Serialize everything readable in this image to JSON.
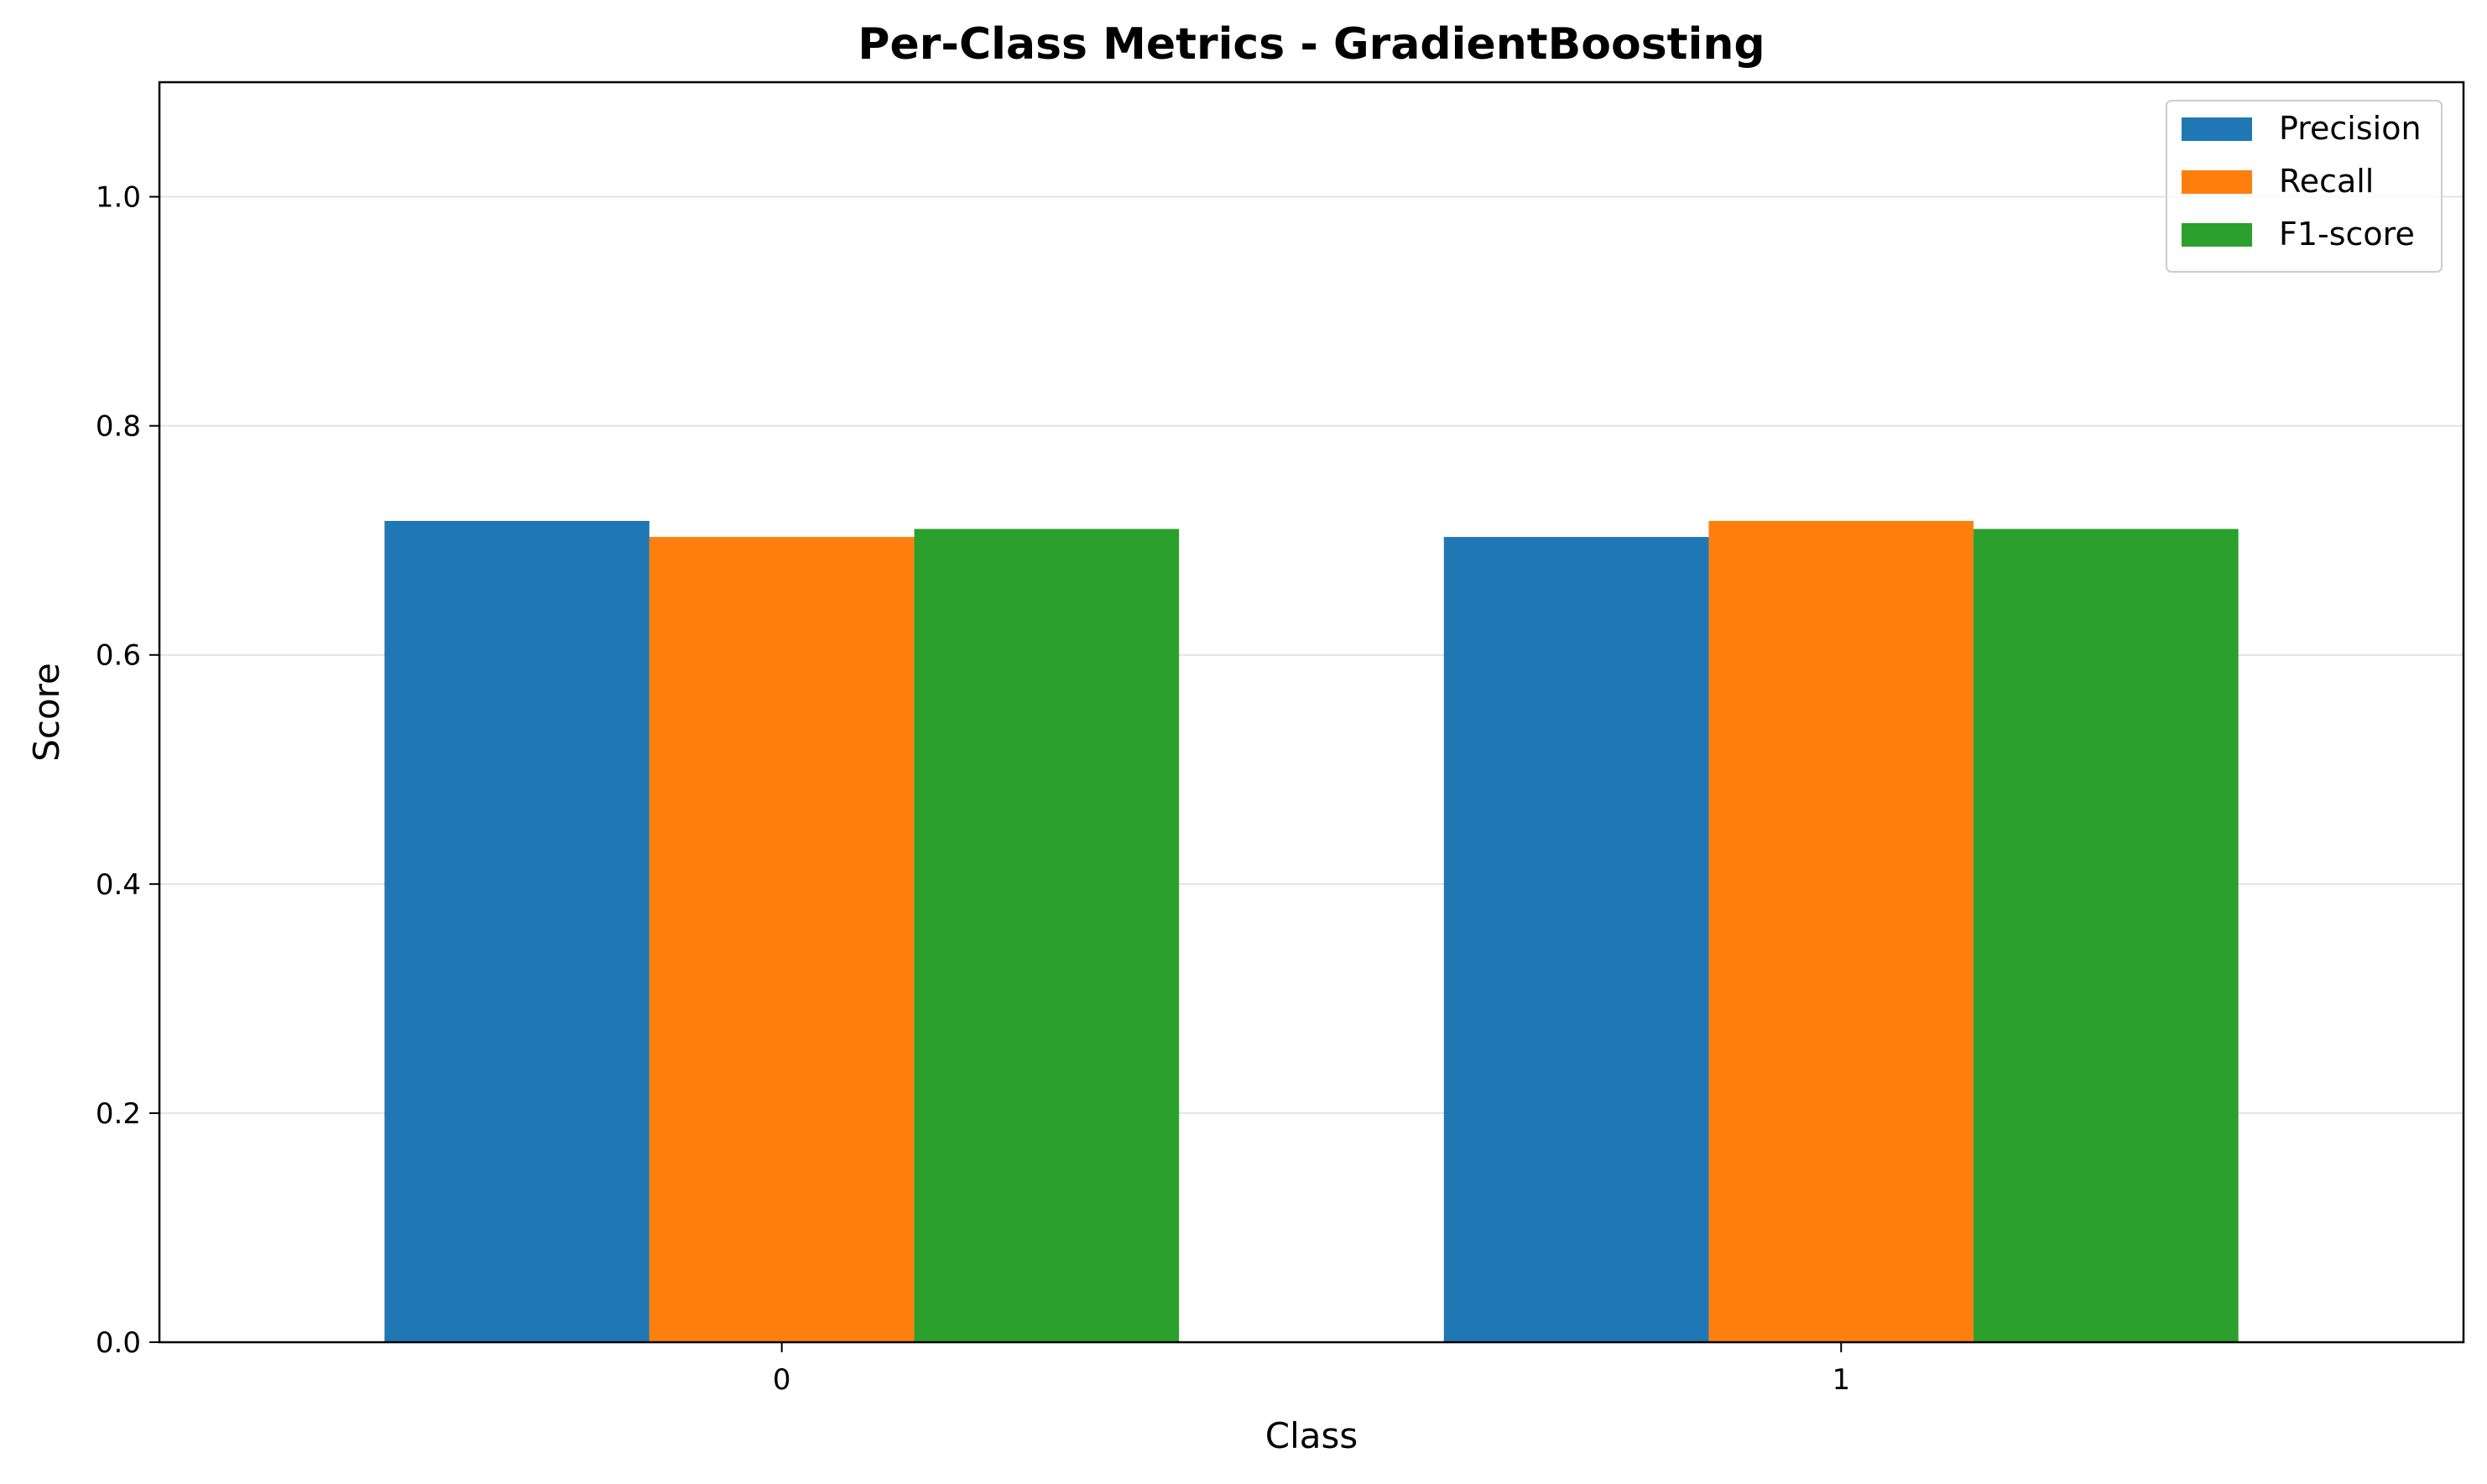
{
  "chart_data": {
    "type": "bar",
    "title": "Per-Class Metrics - GradientBoosting",
    "xlabel": "Class",
    "ylabel": "Score",
    "categories": [
      "0",
      "1"
    ],
    "series": [
      {
        "name": "Precision",
        "color": "#1f77b4",
        "values": [
          0.717,
          0.703
        ]
      },
      {
        "name": "Recall",
        "color": "#ff7f0e",
        "values": [
          0.703,
          0.717
        ]
      },
      {
        "name": "F1-score",
        "color": "#2ca02c",
        "values": [
          0.71,
          0.71
        ]
      }
    ],
    "ylim": [
      0,
      1.1
    ],
    "yticks": [
      "0.0",
      "0.2",
      "0.4",
      "0.6",
      "0.8",
      "1.0"
    ],
    "grid": "y",
    "legend_position": "top-right"
  }
}
